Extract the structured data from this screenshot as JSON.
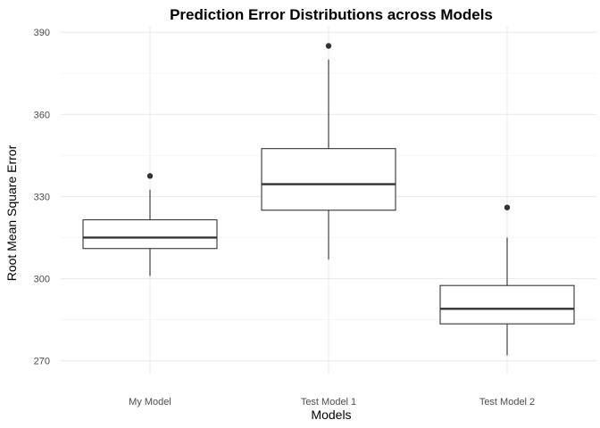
{
  "chart_data": {
    "type": "boxplot",
    "title": "Prediction Error Distributions across Models",
    "xlabel": "Models",
    "ylabel": "Root Mean Square Error",
    "ylim": [
      265,
      392
    ],
    "yticks": [
      270,
      300,
      330,
      360,
      390
    ],
    "grid": true,
    "legend": "none",
    "categories": [
      "My Model",
      "Test Model 1",
      "Test Model 2"
    ],
    "series": [
      {
        "category": "My Model",
        "min": 301,
        "q1": 311,
        "median": 315,
        "q3": 321.5,
        "max": 332.5,
        "outliers": [
          337.5
        ]
      },
      {
        "category": "Test Model 1",
        "min": 307,
        "q1": 325,
        "median": 334.5,
        "q3": 347.5,
        "max": 380,
        "outliers": [
          385
        ]
      },
      {
        "category": "Test Model 2",
        "min": 272,
        "q1": 283.5,
        "median": 289,
        "q3": 297.5,
        "max": 315,
        "outliers": [
          326
        ]
      }
    ]
  }
}
